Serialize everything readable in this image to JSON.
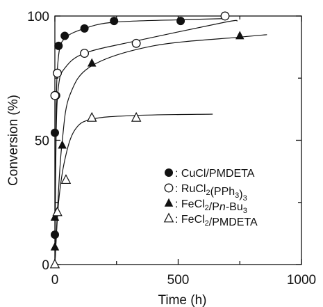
{
  "chart_data": {
    "type": "scatter",
    "title": "",
    "xlabel": "Time (h)",
    "ylabel": "Conversion (%)",
    "xlim": [
      0,
      1000
    ],
    "ylim": [
      0,
      100
    ],
    "xticks": [
      0,
      500,
      1000
    ],
    "yticks": [
      0,
      50,
      100
    ],
    "grid": false,
    "legend_position": "center-right",
    "series": [
      {
        "name": "CuCl/PMDETA",
        "marker": "filled-circle",
        "points": [
          [
            0,
            12
          ],
          [
            0,
            53
          ],
          [
            5,
            68
          ],
          [
            15,
            88
          ],
          [
            40,
            92
          ],
          [
            120,
            95
          ],
          [
            240,
            98
          ],
          [
            510,
            98
          ]
        ],
        "fit": [
          [
            0,
            0
          ],
          [
            5,
            62
          ],
          [
            15,
            84
          ],
          [
            40,
            91
          ],
          [
            120,
            95
          ],
          [
            240,
            97.5
          ],
          [
            510,
            98.5
          ],
          [
            700,
            99
          ]
        ]
      },
      {
        "name": "RuCl2(PPh3)3",
        "marker": "open-circle",
        "points": [
          [
            0,
            68
          ],
          [
            10,
            77
          ],
          [
            120,
            85
          ],
          [
            330,
            89
          ],
          [
            690,
            100
          ]
        ],
        "fit": [
          [
            0,
            0
          ],
          [
            5,
            52
          ],
          [
            15,
            72
          ],
          [
            40,
            79
          ],
          [
            120,
            85
          ],
          [
            330,
            90
          ],
          [
            690,
            97.5
          ],
          [
            740,
            98
          ]
        ]
      },
      {
        "name": "FeCl2/Pn-Bu3",
        "marker": "filled-triangle",
        "points": [
          [
            0,
            7
          ],
          [
            0,
            19
          ],
          [
            30,
            48
          ],
          [
            150,
            81
          ],
          [
            750,
            92
          ]
        ],
        "fit": [
          [
            0,
            0
          ],
          [
            15,
            30
          ],
          [
            30,
            50
          ],
          [
            60,
            68
          ],
          [
            150,
            80
          ],
          [
            400,
            88
          ],
          [
            750,
            91.5
          ],
          [
            860,
            92.5
          ]
        ]
      },
      {
        "name": "FeCl2/PMDETA",
        "marker": "open-triangle",
        "points": [
          [
            0,
            0
          ],
          [
            10,
            21
          ],
          [
            45,
            34
          ],
          [
            150,
            59
          ],
          [
            330,
            59
          ]
        ],
        "fit": [
          [
            0,
            0
          ],
          [
            15,
            25
          ],
          [
            40,
            42
          ],
          [
            80,
            54
          ],
          [
            150,
            58.5
          ],
          [
            330,
            60
          ],
          [
            640,
            60.5
          ]
        ]
      }
    ]
  },
  "legend": {
    "entries": [
      {
        "parts": [
          {
            "t": ": CuCl/PMDETA"
          }
        ]
      },
      {
        "parts": [
          {
            "t": ": RuCl"
          },
          {
            "t": "2",
            "sub": true
          },
          {
            "t": "(PPh"
          },
          {
            "t": "3",
            "sub": true
          },
          {
            "t": ")"
          },
          {
            "t": "3",
            "sub": true
          }
        ]
      },
      {
        "parts": [
          {
            "t": ": FeCl"
          },
          {
            "t": "2",
            "sub": true
          },
          {
            "t": "/P"
          },
          {
            "t": "n",
            "it": true
          },
          {
            "t": "-Bu"
          },
          {
            "t": "3",
            "sub": true
          }
        ]
      },
      {
        "parts": [
          {
            "t": ": FeCl"
          },
          {
            "t": "2",
            "sub": true
          },
          {
            "t": "/PMDETA"
          }
        ]
      }
    ]
  },
  "colors": {
    "ink": "#111111",
    "background": "#ffffff"
  }
}
